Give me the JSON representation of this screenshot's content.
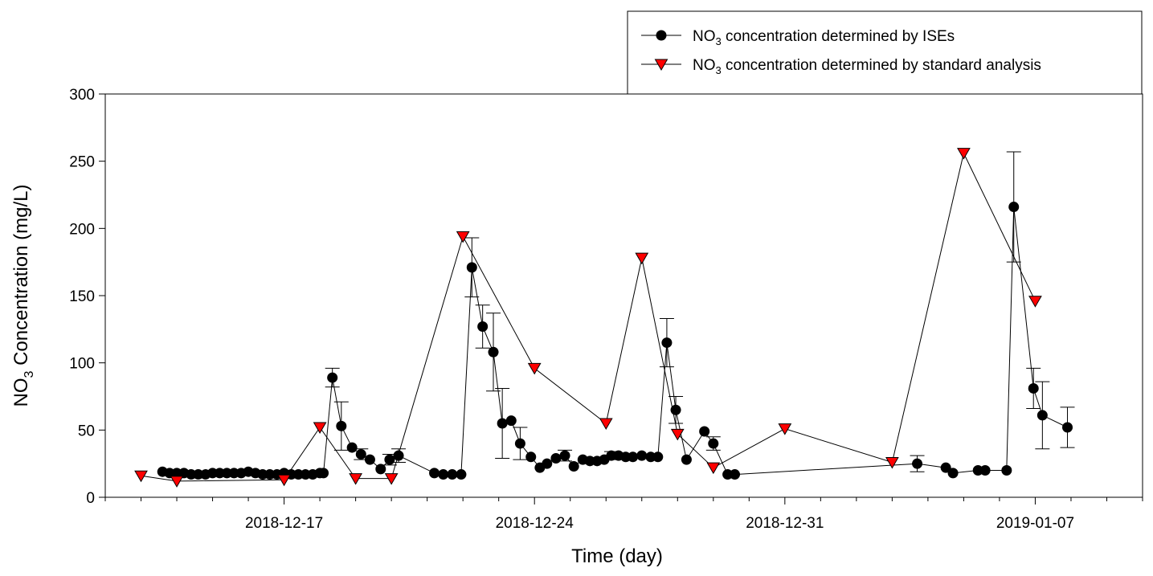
{
  "chart_data": {
    "type": "line",
    "title": "",
    "xlabel": "Time (day)",
    "ylabel": {
      "main": "NO",
      "sub": "3",
      "rest": " Concentration (mg/L)"
    },
    "xlim": [
      -5,
      24
    ],
    "ylim": [
      0,
      300
    ],
    "x_reference_date": "2018-12-17",
    "x_unit": "days since 2018-12-17",
    "x_ticks": [
      {
        "value": 0,
        "label": "2018-12-17"
      },
      {
        "value": 7,
        "label": "2018-12-24"
      },
      {
        "value": 14,
        "label": "2018-12-31"
      },
      {
        "value": 21,
        "label": "2019-01-07"
      }
    ],
    "x_minor_ticks": [
      -5,
      -4,
      -3,
      -2,
      -1,
      1,
      2,
      3,
      4,
      5,
      6,
      8,
      9,
      10,
      11,
      12,
      13,
      15,
      16,
      17,
      18,
      19,
      20,
      22,
      23,
      24
    ],
    "y_ticks": [
      {
        "value": 0,
        "label": "0"
      },
      {
        "value": 50,
        "label": "50"
      },
      {
        "value": 100,
        "label": "100"
      },
      {
        "value": 150,
        "label": "150"
      },
      {
        "value": 200,
        "label": "200"
      },
      {
        "value": 250,
        "label": "250"
      },
      {
        "value": 300,
        "label": "300"
      }
    ],
    "grid": false,
    "legend_position": "top-right, above plot",
    "series": [
      {
        "name": {
          "main": "NO",
          "sub": "3",
          "rest": " concentration determined by ISEs"
        },
        "marker": "circle",
        "color": "#000000",
        "points": [
          {
            "x": -3.4,
            "y": 19
          },
          {
            "x": -3.2,
            "y": 18
          },
          {
            "x": -3.0,
            "y": 18
          },
          {
            "x": -2.8,
            "y": 18
          },
          {
            "x": -2.6,
            "y": 17
          },
          {
            "x": -2.4,
            "y": 17
          },
          {
            "x": -2.2,
            "y": 17
          },
          {
            "x": -2.0,
            "y": 18
          },
          {
            "x": -1.8,
            "y": 18
          },
          {
            "x": -1.6,
            "y": 18
          },
          {
            "x": -1.4,
            "y": 18
          },
          {
            "x": -1.2,
            "y": 18
          },
          {
            "x": -1.0,
            "y": 19
          },
          {
            "x": -0.8,
            "y": 18
          },
          {
            "x": -0.6,
            "y": 17
          },
          {
            "x": -0.4,
            "y": 17
          },
          {
            "x": -0.2,
            "y": 17
          },
          {
            "x": 0.0,
            "y": 18
          },
          {
            "x": 0.2,
            "y": 17
          },
          {
            "x": 0.4,
            "y": 17
          },
          {
            "x": 0.6,
            "y": 17
          },
          {
            "x": 0.8,
            "y": 17
          },
          {
            "x": 1.0,
            "y": 18
          },
          {
            "x": 1.1,
            "y": 18
          },
          {
            "x": 1.35,
            "y": 89,
            "err": 7
          },
          {
            "x": 1.6,
            "y": 53,
            "err": 18
          },
          {
            "x": 1.9,
            "y": 37
          },
          {
            "x": 2.15,
            "y": 32,
            "err": 4
          },
          {
            "x": 2.4,
            "y": 28
          },
          {
            "x": 2.7,
            "y": 21
          },
          {
            "x": 2.95,
            "y": 28,
            "err": 4
          },
          {
            "x": 3.2,
            "y": 31,
            "err": 5
          },
          {
            "x": 4.2,
            "y": 18
          },
          {
            "x": 4.45,
            "y": 17
          },
          {
            "x": 4.7,
            "y": 17
          },
          {
            "x": 4.95,
            "y": 17
          },
          {
            "x": 5.25,
            "y": 171,
            "err": 22
          },
          {
            "x": 5.55,
            "y": 127,
            "err": 16
          },
          {
            "x": 5.85,
            "y": 108,
            "err": 29
          },
          {
            "x": 6.1,
            "y": 55,
            "err": 26
          },
          {
            "x": 6.35,
            "y": 57
          },
          {
            "x": 6.6,
            "y": 40,
            "err": 12
          },
          {
            "x": 6.9,
            "y": 30
          },
          {
            "x": 7.15,
            "y": 22
          },
          {
            "x": 7.35,
            "y": 25
          },
          {
            "x": 7.6,
            "y": 29
          },
          {
            "x": 7.85,
            "y": 31,
            "err": 4
          },
          {
            "x": 8.1,
            "y": 23
          },
          {
            "x": 8.35,
            "y": 28
          },
          {
            "x": 8.55,
            "y": 27
          },
          {
            "x": 8.75,
            "y": 27
          },
          {
            "x": 8.95,
            "y": 28
          },
          {
            "x": 9.15,
            "y": 31,
            "err": 3
          },
          {
            "x": 9.35,
            "y": 31
          },
          {
            "x": 9.55,
            "y": 30
          },
          {
            "x": 9.75,
            "y": 30
          },
          {
            "x": 10.0,
            "y": 31
          },
          {
            "x": 10.25,
            "y": 30
          },
          {
            "x": 10.45,
            "y": 30
          },
          {
            "x": 10.7,
            "y": 115,
            "err": 18
          },
          {
            "x": 10.95,
            "y": 65,
            "err": 10
          },
          {
            "x": 11.25,
            "y": 28
          },
          {
            "x": 11.75,
            "y": 49
          },
          {
            "x": 12.0,
            "y": 40,
            "err": 5
          },
          {
            "x": 12.4,
            "y": 17
          },
          {
            "x": 12.6,
            "y": 17
          },
          {
            "x": 17.7,
            "y": 25,
            "err": 6
          },
          {
            "x": 18.5,
            "y": 22
          },
          {
            "x": 18.7,
            "y": 18
          },
          {
            "x": 19.4,
            "y": 20
          },
          {
            "x": 19.6,
            "y": 20
          },
          {
            "x": 20.2,
            "y": 20
          },
          {
            "x": 20.4,
            "y": 216,
            "err": 41
          },
          {
            "x": 20.95,
            "y": 81,
            "err": 15
          },
          {
            "x": 21.2,
            "y": 61,
            "err": 25
          },
          {
            "x": 21.9,
            "y": 52,
            "err": 15
          }
        ]
      },
      {
        "name": {
          "main": "NO",
          "sub": "3",
          "rest": " concentration determined by standard analysis"
        },
        "marker": "triangle-down",
        "color": "#ff0000",
        "points": [
          {
            "x": -4.0,
            "y": 16
          },
          {
            "x": -3.0,
            "y": 12
          },
          {
            "x": 0.0,
            "y": 13
          },
          {
            "x": 1.0,
            "y": 52
          },
          {
            "x": 2.0,
            "y": 14
          },
          {
            "x": 3.0,
            "y": 14
          },
          {
            "x": 5.0,
            "y": 194
          },
          {
            "x": 7.0,
            "y": 96
          },
          {
            "x": 9.0,
            "y": 55
          },
          {
            "x": 10.0,
            "y": 178
          },
          {
            "x": 11.0,
            "y": 47
          },
          {
            "x": 12.0,
            "y": 22
          },
          {
            "x": 14.0,
            "y": 51
          },
          {
            "x": 17.0,
            "y": 26
          },
          {
            "x": 19.0,
            "y": 256
          },
          {
            "x": 21.0,
            "y": 146
          }
        ]
      }
    ]
  }
}
